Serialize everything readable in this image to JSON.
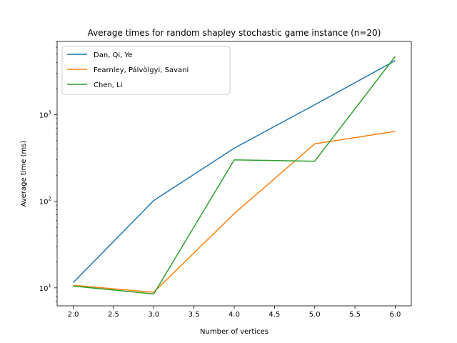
{
  "chart_data": {
    "type": "line",
    "title": "Average times for random shapley stochastic game instance (n=20)",
    "xlabel": "Number of vertices",
    "ylabel": "Average time (ms)",
    "x": [
      2,
      3,
      4,
      5,
      6
    ],
    "xlim": [
      1.8,
      6.2
    ],
    "ylim": [
      6.2,
      7000
    ],
    "yscale": "log",
    "grid": false,
    "legend_position": "top-left",
    "x_ticks": [
      "2.0",
      "2.5",
      "3.0",
      "3.5",
      "4.0",
      "4.5",
      "5.0",
      "5.5",
      "6.0"
    ],
    "y_ticks": [
      {
        "base": "10",
        "exp": "1",
        "value": 10
      },
      {
        "base": "10",
        "exp": "2",
        "value": 100
      },
      {
        "base": "10",
        "exp": "3",
        "value": 1000
      }
    ],
    "series": [
      {
        "name": "Dan, Qi, Ye",
        "color": "#1f77b4",
        "values": [
          11.5,
          102,
          410,
          1300,
          4200
        ]
      },
      {
        "name": "Fearnley, Pálvölgyi, Savani",
        "color": "#ff7f0e",
        "values": [
          10.7,
          8.9,
          72,
          460,
          640
        ]
      },
      {
        "name": "Chen, Li",
        "color": "#2ca02c",
        "values": [
          10.5,
          8.5,
          300,
          290,
          4700
        ]
      }
    ]
  }
}
